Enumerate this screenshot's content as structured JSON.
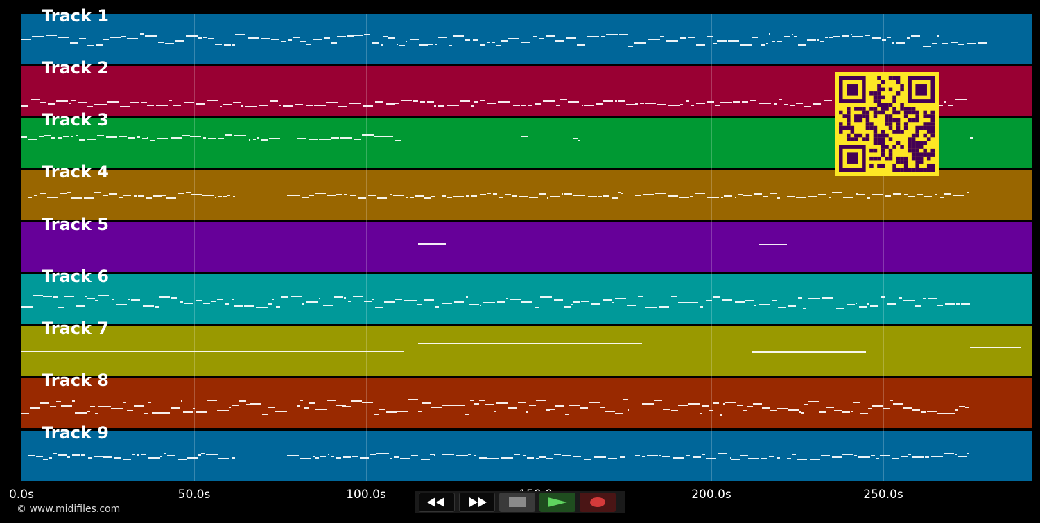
{
  "tracks": [
    {
      "label": "Track 1",
      "color": "#006699"
    },
    {
      "label": "Track 2",
      "color": "#990033"
    },
    {
      "label": "Track 3",
      "color": "#009933"
    },
    {
      "label": "Track 4",
      "color": "#996600"
    },
    {
      "label": "Track 5",
      "color": "#660099"
    },
    {
      "label": "Track 6",
      "color": "#009999"
    },
    {
      "label": "Track 7",
      "color": "#999900"
    },
    {
      "label": "Track 8",
      "color": "#992900"
    },
    {
      "label": "Track 9",
      "color": "#006699"
    }
  ],
  "timeline": {
    "max_seconds": 293,
    "ticks": [
      "0.0s",
      "50.0s",
      "100.0s",
      "150.0s",
      "200.0s",
      "250.0s"
    ],
    "tick_values": [
      0,
      50,
      100,
      150,
      200,
      250
    ]
  },
  "footer": {
    "copyright": "© www.midifiles.com"
  },
  "controls": [
    {
      "name": "rewind-button",
      "icon": "rewind-icon"
    },
    {
      "name": "fast-forward-button",
      "icon": "fast-forward-icon"
    },
    {
      "name": "stop-button",
      "icon": "stop-icon"
    },
    {
      "name": "play-button",
      "icon": "play-icon"
    },
    {
      "name": "record-button",
      "icon": "record-icon"
    }
  ],
  "qr_code": {
    "color": "#fde725",
    "dark": "#440154"
  }
}
